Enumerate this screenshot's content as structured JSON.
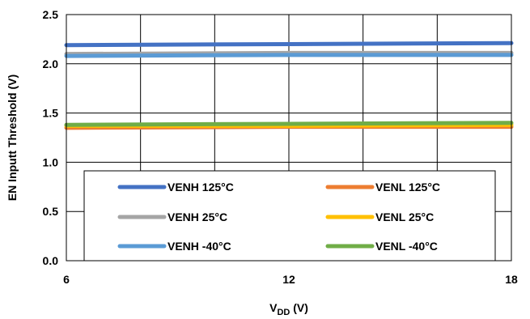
{
  "chart_data": {
    "type": "line",
    "title": "",
    "xlabel_main": "V",
    "xlabel_sub": "DD",
    "xlabel_unit": " (V)",
    "ylabel": "EN Inputt Threshold (V)",
    "xlim": [
      6,
      18
    ],
    "ylim": [
      0,
      2.5
    ],
    "xticks": [
      6,
      12,
      18
    ],
    "yticks": [
      "0.0",
      "0.5",
      "1.0",
      "1.5",
      "2.0",
      "2.5"
    ],
    "x": [
      6,
      12,
      18
    ],
    "grid": true,
    "legend_position": "lower-center",
    "series": [
      {
        "name": "VENH 125°C",
        "color": "#4472C4",
        "values": [
          2.19,
          2.2,
          2.21
        ]
      },
      {
        "name": "VENL 125°C",
        "color": "#ED7D31",
        "values": [
          1.35,
          1.36,
          1.36
        ]
      },
      {
        "name": "VENH 25°C",
        "color": "#A5A5A5",
        "values": [
          2.1,
          2.11,
          2.11
        ]
      },
      {
        "name": "VENL 25°C",
        "color": "#FFC000",
        "values": [
          1.37,
          1.37,
          1.38
        ]
      },
      {
        "name": "VENH -40°C",
        "color": "#5B9BD5",
        "values": [
          2.08,
          2.09,
          2.09
        ]
      },
      {
        "name": "VENL -40°C",
        "color": "#70AD47",
        "values": [
          1.38,
          1.39,
          1.4
        ]
      }
    ]
  }
}
